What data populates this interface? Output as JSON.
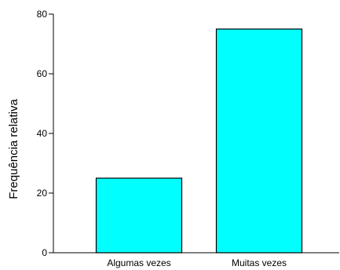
{
  "chart_data": {
    "type": "bar",
    "categories": [
      "Algumas vezes",
      "Muitas vezes"
    ],
    "values": [
      25,
      75
    ],
    "ylabel": "Frequência relativa",
    "xlabel": "",
    "ylim": [
      0,
      80
    ],
    "yticks": [
      0,
      20,
      40,
      60,
      80
    ],
    "grid": false,
    "bar_color": "#00ffff",
    "edge_color": "#000000"
  }
}
